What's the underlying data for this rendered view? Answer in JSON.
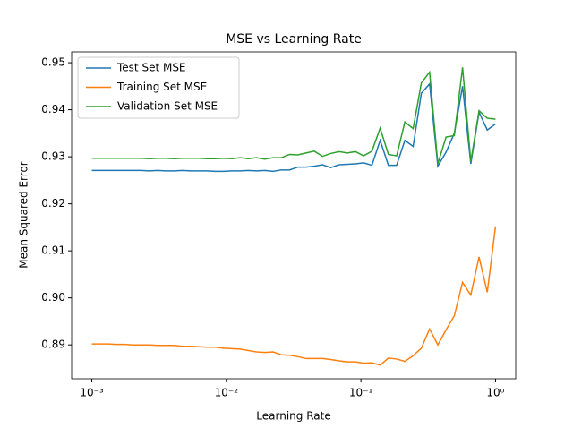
{
  "chart_data": {
    "type": "line",
    "title": "MSE vs Learning Rate",
    "x_label": "Learning Rate",
    "y_label": "Mean Squared Error",
    "x": [
      0.001,
      0.0011514,
      0.0013257,
      0.0015264,
      0.0017575,
      0.0020236,
      0.00233,
      0.0026827,
      0.0030888,
      0.0035565,
      0.0040949,
      0.0047149,
      0.0054287,
      0.0062506,
      0.0071969,
      0.0082864,
      0.009541,
      0.010985,
      0.012649,
      0.014563,
      0.016768,
      0.019307,
      0.02223,
      0.025595,
      0.029471,
      0.033932,
      0.039069,
      0.044984,
      0.051795,
      0.059636,
      0.068665,
      0.07906,
      0.09103,
      0.10481,
      0.12068,
      0.13895,
      0.15999,
      0.18421,
      0.2121,
      0.24421,
      0.28118,
      0.32375,
      0.37276,
      0.42919,
      0.49417,
      0.56899,
      0.65513,
      0.75431,
      0.86851,
      1.0
    ],
    "series": [
      {
        "name": "Test Set MSE",
        "color": "#1f77b4",
        "values": [
          0.9271,
          0.9271,
          0.9271,
          0.9271,
          0.9271,
          0.9271,
          0.9271,
          0.927,
          0.9271,
          0.927,
          0.927,
          0.9271,
          0.927,
          0.927,
          0.927,
          0.9269,
          0.9269,
          0.927,
          0.927,
          0.9271,
          0.927,
          0.9271,
          0.9269,
          0.9272,
          0.9272,
          0.9278,
          0.9278,
          0.928,
          0.9283,
          0.9277,
          0.9283,
          0.9284,
          0.9285,
          0.9287,
          0.9282,
          0.9335,
          0.9282,
          0.9282,
          0.9335,
          0.9322,
          0.9435,
          0.9455,
          0.928,
          0.931,
          0.935,
          0.945,
          0.9285,
          0.9395,
          0.9357,
          0.937
        ]
      },
      {
        "name": "Training Set MSE",
        "color": "#ff7f0e",
        "values": [
          0.8902,
          0.8902,
          0.8902,
          0.8901,
          0.8901,
          0.89,
          0.89,
          0.89,
          0.8899,
          0.8899,
          0.8899,
          0.8897,
          0.8897,
          0.8896,
          0.8895,
          0.8895,
          0.8893,
          0.8892,
          0.8891,
          0.8888,
          0.8885,
          0.8884,
          0.8885,
          0.8879,
          0.8878,
          0.8875,
          0.8871,
          0.8871,
          0.8871,
          0.8869,
          0.8866,
          0.8864,
          0.8864,
          0.8861,
          0.8862,
          0.8857,
          0.8872,
          0.887,
          0.8865,
          0.8877,
          0.8893,
          0.8934,
          0.89,
          0.8932,
          0.8962,
          0.9033,
          0.9006,
          0.9087,
          0.9012,
          0.9152
        ]
      },
      {
        "name": "Validation Set MSE",
        "color": "#2ca02c",
        "values": [
          0.9297,
          0.9297,
          0.9297,
          0.9297,
          0.9297,
          0.9297,
          0.9297,
          0.9296,
          0.9297,
          0.9297,
          0.9296,
          0.9297,
          0.9297,
          0.9297,
          0.9296,
          0.9296,
          0.9297,
          0.9296,
          0.9298,
          0.9296,
          0.9298,
          0.9295,
          0.9298,
          0.9298,
          0.9305,
          0.9304,
          0.9308,
          0.9312,
          0.9301,
          0.9307,
          0.9311,
          0.9308,
          0.9311,
          0.9302,
          0.9312,
          0.9361,
          0.9305,
          0.9302,
          0.9374,
          0.936,
          0.9457,
          0.948,
          0.9285,
          0.9342,
          0.9345,
          0.949,
          0.929,
          0.9398,
          0.9382,
          0.938
        ]
      }
    ],
    "xscale": "log",
    "xlim": [
      0.000708,
      1.413
    ],
    "ylim": [
      0.8828,
      0.9523
    ],
    "xticks": [
      {
        "value": 0.001,
        "label": "10⁻³"
      },
      {
        "value": 0.01,
        "label": "10⁻²"
      },
      {
        "value": 0.1,
        "label": "10⁻¹"
      },
      {
        "value": 1,
        "label": "10⁰"
      }
    ],
    "yticks": [
      0.89,
      {
        "value": 0.9,
        "label": "0.90"
      },
      0.91,
      0.92,
      0.93,
      0.94,
      0.95
    ],
    "legend": "upper left",
    "grid": false
  }
}
